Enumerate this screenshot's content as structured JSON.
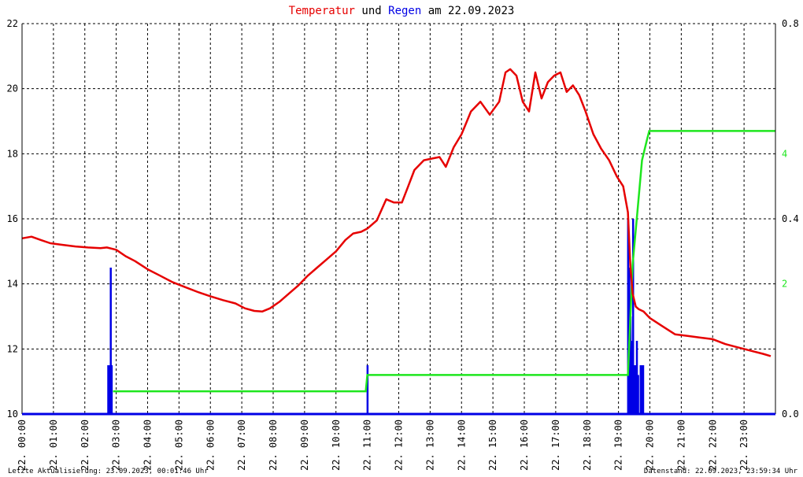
{
  "chart_data": {
    "type": "line",
    "title": {
      "part1": "Temperatur",
      "part2": "und",
      "part3": "Regen",
      "part4": "am 22.09.2023"
    },
    "colors": {
      "temperature": "#e60000",
      "rain_bar": "#0000e6",
      "rain_cumulative": "#1ee61e",
      "title_plain": "#000000"
    },
    "x_axis": {
      "tick_hours": [
        0,
        1,
        2,
        3,
        4,
        5,
        6,
        7,
        8,
        9,
        10,
        11,
        12,
        13,
        14,
        15,
        16,
        17,
        18,
        19,
        20,
        21,
        22,
        23
      ],
      "tick_labels": [
        "22. 00:00",
        "22. 01:00",
        "22. 02:00",
        "22. 03:00",
        "22. 04:00",
        "22. 05:00",
        "22. 06:00",
        "22. 07:00",
        "22. 08:00",
        "22. 09:00",
        "22. 10:00",
        "22. 11:00",
        "22. 12:00",
        "22. 13:00",
        "22. 14:00",
        "22. 15:00",
        "22. 16:00",
        "22. 17:00",
        "22. 18:00",
        "22. 19:00",
        "22. 20:00",
        "22. 21:00",
        "22. 22:00",
        "22. 23:00"
      ],
      "range_hours": [
        0,
        24
      ]
    },
    "y_left": {
      "ticks": [
        10,
        12,
        14,
        16,
        18,
        20,
        22
      ],
      "labels": [
        "10",
        "12",
        "14",
        "16",
        "18",
        "20",
        "22"
      ],
      "range": [
        10,
        22
      ]
    },
    "y_right_rain_rate": {
      "ticks": [
        0.0,
        0.4,
        0.8
      ],
      "labels": [
        "0.0",
        "0.4",
        "0.8"
      ],
      "range": [
        0,
        0.8
      ]
    },
    "y_right_rain_sum": {
      "ticks": [
        2,
        4
      ],
      "labels": [
        "2",
        "4"
      ],
      "range": [
        0,
        6
      ]
    },
    "grid": true,
    "temperature": {
      "hours": [
        0,
        0.3,
        0.6,
        0.9,
        1.3,
        1.7,
        2.1,
        2.5,
        2.7,
        3.0,
        3.3,
        3.6,
        4.0,
        4.4,
        4.8,
        5.2,
        5.6,
        6.0,
        6.4,
        6.8,
        7.1,
        7.4,
        7.65,
        7.9,
        8.2,
        8.5,
        8.8,
        9.1,
        9.4,
        9.7,
        10.0,
        10.3,
        10.55,
        10.8,
        11.0,
        11.3,
        11.6,
        11.85,
        12.1,
        12.3,
        12.5,
        12.8,
        13.05,
        13.3,
        13.5,
        13.75,
        14.0,
        14.3,
        14.6,
        14.9,
        15.2,
        15.4,
        15.55,
        15.75,
        15.95,
        16.15,
        16.35,
        16.55,
        16.75,
        16.95,
        17.15,
        17.35,
        17.55,
        17.75,
        17.95,
        18.2,
        18.45,
        18.7,
        18.95,
        19.15,
        19.3,
        19.38,
        19.45,
        19.55,
        19.65,
        19.8,
        20.0,
        20.4,
        20.8,
        21.2,
        21.6,
        22.0,
        22.4,
        22.8,
        23.2,
        23.6,
        23.85
      ],
      "values": [
        15.4,
        15.45,
        15.35,
        15.25,
        15.2,
        15.15,
        15.12,
        15.1,
        15.12,
        15.05,
        14.85,
        14.7,
        14.45,
        14.25,
        14.05,
        13.9,
        13.75,
        13.62,
        13.5,
        13.4,
        13.25,
        13.17,
        13.15,
        13.25,
        13.45,
        13.7,
        13.95,
        14.25,
        14.5,
        14.75,
        15.0,
        15.35,
        15.55,
        15.6,
        15.7,
        15.95,
        16.6,
        16.5,
        16.5,
        17.0,
        17.5,
        17.8,
        17.85,
        17.9,
        17.6,
        18.2,
        18.6,
        19.3,
        19.6,
        19.2,
        19.6,
        20.5,
        20.6,
        20.4,
        19.6,
        19.3,
        20.5,
        19.7,
        20.2,
        20.4,
        20.5,
        19.9,
        20.1,
        19.8,
        19.3,
        18.6,
        18.15,
        17.8,
        17.3,
        17.0,
        16.2,
        14.5,
        13.7,
        13.3,
        13.22,
        13.15,
        12.95,
        12.7,
        12.45,
        12.4,
        12.35,
        12.3,
        12.15,
        12.05,
        11.95,
        11.85,
        11.78
      ]
    },
    "rain_rate": {
      "hours": [
        2.74,
        2.78,
        2.82,
        2.85,
        11.0,
        19.3,
        19.34,
        19.38,
        19.42,
        19.46,
        19.5,
        19.54,
        19.58,
        19.62,
        19.7,
        19.74,
        19.78
      ],
      "values": [
        0.1,
        0.1,
        0.3,
        0.1,
        0.1,
        0.4,
        0.3,
        0.2,
        0.15,
        0.4,
        0.1,
        0.1,
        0.15,
        0.08,
        0.1,
        0.1,
        0.1
      ]
    },
    "rain_sum": {
      "hours": [
        2.9,
        10.95,
        11.0,
        19.3,
        19.45,
        19.6,
        19.75,
        19.9,
        19.98,
        24.0
      ],
      "values": [
        0.35,
        0.35,
        0.6,
        0.6,
        2.3,
        3.1,
        3.9,
        4.2,
        4.35,
        4.35
      ]
    },
    "footer_left": "Letzte Aktualisierung: 23.09.2023, 00:01:46 Uhr",
    "footer_right": "Datenstand: 22.09.2023, 23:59:34 Uhr"
  }
}
